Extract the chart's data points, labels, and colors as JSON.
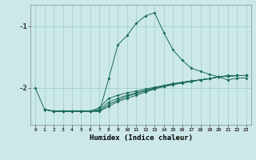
{
  "xlabel": "Humidex (Indice chaleur)",
  "background_color": "#cce8e8",
  "grid_color": "#99cccc",
  "line_color": "#1a6b5a",
  "xlim": [
    -0.5,
    23.5
  ],
  "ylim": [
    -2.6,
    -0.65
  ],
  "yticks": [
    -2,
    -1
  ],
  "lines": [
    {
      "x": [
        0,
        1,
        2,
        3,
        4,
        5,
        6,
        7,
        8,
        9,
        10,
        11,
        12,
        13,
        14,
        15,
        16,
        17,
        18,
        19,
        20,
        21,
        22,
        23
      ],
      "y": [
        -2.0,
        -2.35,
        -2.38,
        -2.38,
        -2.38,
        -2.38,
        -2.38,
        -2.38,
        -1.85,
        -1.3,
        -1.15,
        -0.95,
        -0.83,
        -0.78,
        -1.1,
        -1.38,
        -1.55,
        -1.68,
        -1.73,
        -1.78,
        -1.82,
        -1.87,
        -1.84,
        -1.84
      ]
    },
    {
      "x": [
        1,
        2,
        3,
        4,
        5,
        6,
        7,
        8,
        9,
        10,
        11,
        12,
        13,
        14,
        15,
        16,
        17,
        18,
        19,
        20,
        21,
        22,
        23
      ],
      "y": [
        -2.35,
        -2.38,
        -2.38,
        -2.38,
        -2.38,
        -2.38,
        -2.38,
        -2.3,
        -2.22,
        -2.17,
        -2.12,
        -2.07,
        -2.02,
        -1.98,
        -1.95,
        -1.92,
        -1.9,
        -1.87,
        -1.85,
        -1.82,
        -1.81,
        -1.8,
        -1.8
      ]
    },
    {
      "x": [
        1,
        2,
        3,
        4,
        5,
        6,
        7,
        8,
        9,
        10,
        11,
        12,
        13,
        14,
        15,
        16,
        17,
        18,
        19,
        20,
        21,
        22,
        23
      ],
      "y": [
        -2.35,
        -2.38,
        -2.38,
        -2.38,
        -2.38,
        -2.38,
        -2.37,
        -2.27,
        -2.2,
        -2.14,
        -2.09,
        -2.05,
        -2.01,
        -1.97,
        -1.94,
        -1.91,
        -1.89,
        -1.87,
        -1.85,
        -1.82,
        -1.81,
        -1.8,
        -1.8
      ]
    },
    {
      "x": [
        1,
        2,
        3,
        4,
        5,
        6,
        7,
        8,
        9,
        10,
        11,
        12,
        13,
        14,
        15,
        16,
        17,
        18,
        19,
        20,
        21,
        22,
        23
      ],
      "y": [
        -2.35,
        -2.38,
        -2.38,
        -2.38,
        -2.38,
        -2.38,
        -2.35,
        -2.23,
        -2.17,
        -2.12,
        -2.08,
        -2.04,
        -2.0,
        -1.97,
        -1.94,
        -1.91,
        -1.89,
        -1.87,
        -1.85,
        -1.82,
        -1.81,
        -1.8,
        -1.8
      ]
    },
    {
      "x": [
        1,
        2,
        3,
        4,
        5,
        6,
        7,
        8,
        9,
        10,
        11,
        12,
        13,
        14,
        15,
        16,
        17,
        18,
        19,
        20,
        21,
        22,
        23
      ],
      "y": [
        -2.35,
        -2.38,
        -2.38,
        -2.38,
        -2.38,
        -2.38,
        -2.32,
        -2.17,
        -2.12,
        -2.08,
        -2.05,
        -2.02,
        -1.99,
        -1.96,
        -1.93,
        -1.91,
        -1.89,
        -1.87,
        -1.85,
        -1.82,
        -1.8,
        -1.8,
        -1.8
      ]
    }
  ]
}
